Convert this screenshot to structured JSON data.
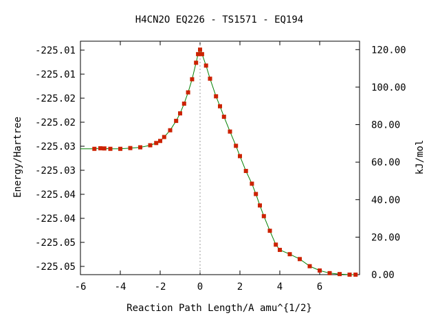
{
  "chart_data": {
    "type": "line",
    "title": "H4CN2O   EQ226 - TS1571 - EQ194",
    "xlabel": "Reaction Path Length/A amu^{1/2}",
    "ylabel_left": "Energy/Hartree",
    "ylabel_right": "kJ/mol",
    "xlim": [
      -6,
      8
    ],
    "ylim_right": [
      0,
      124.5
    ],
    "x_ticks": [
      "-6",
      "-4",
      "-2",
      "0",
      "2",
      "4",
      "6"
    ],
    "x_tick_values": [
      -6,
      -4,
      -2,
      0,
      2,
      4,
      6
    ],
    "y_left_ticks": [
      "-225.01",
      "-225.01",
      "-225.02",
      "-225.02",
      "-225.03",
      "-225.03",
      "-225.04",
      "-225.04",
      "-225.05",
      "-225.05"
    ],
    "y_right_ticks": [
      "120.00",
      "100.00",
      "80.00",
      "60.00",
      "40.00",
      "20.00",
      "0.00"
    ],
    "y_right_tick_values": [
      120,
      100,
      80,
      60,
      40,
      20,
      0
    ],
    "ts_x": 0,
    "colors": {
      "curve": "#008000",
      "points": "#cc2200",
      "ts_line": "#999999"
    },
    "series": [
      {
        "x": [
          -6.0,
          -5.3,
          -5.0,
          -4.8,
          -4.5,
          -4.0,
          -3.5,
          -3.0,
          -2.5,
          -2.2,
          -2.0,
          -1.8,
          -1.5,
          -1.2,
          -1.0,
          -0.8,
          -0.6,
          -0.4,
          -0.2,
          -0.1,
          0.0,
          0.1,
          0.3,
          0.5,
          0.8,
          1.0,
          1.2,
          1.5,
          1.8,
          2.0,
          2.3,
          2.6,
          2.8,
          3.0,
          3.2,
          3.5,
          3.8,
          4.0,
          4.5,
          5.0,
          5.5,
          6.0,
          6.5,
          7.0,
          7.5,
          7.8
        ],
        "y": [
          67.1,
          67.1,
          67.4,
          67.3,
          67.1,
          67.1,
          67.5,
          67.9,
          69.0,
          70.2,
          71.3,
          73.4,
          77.0,
          82.0,
          86.0,
          91.2,
          97.2,
          104.2,
          113.0,
          117.6,
          120.0,
          117.6,
          111.5,
          104.5,
          95.1,
          89.8,
          84.2,
          76.3,
          68.7,
          63.2,
          55.3,
          48.5,
          43.0,
          36.9,
          31.2,
          23.4,
          16.0,
          13.2,
          10.9,
          8.3,
          4.5,
          2.2,
          0.8,
          0.3,
          0.0,
          0.0
        ]
      }
    ]
  }
}
